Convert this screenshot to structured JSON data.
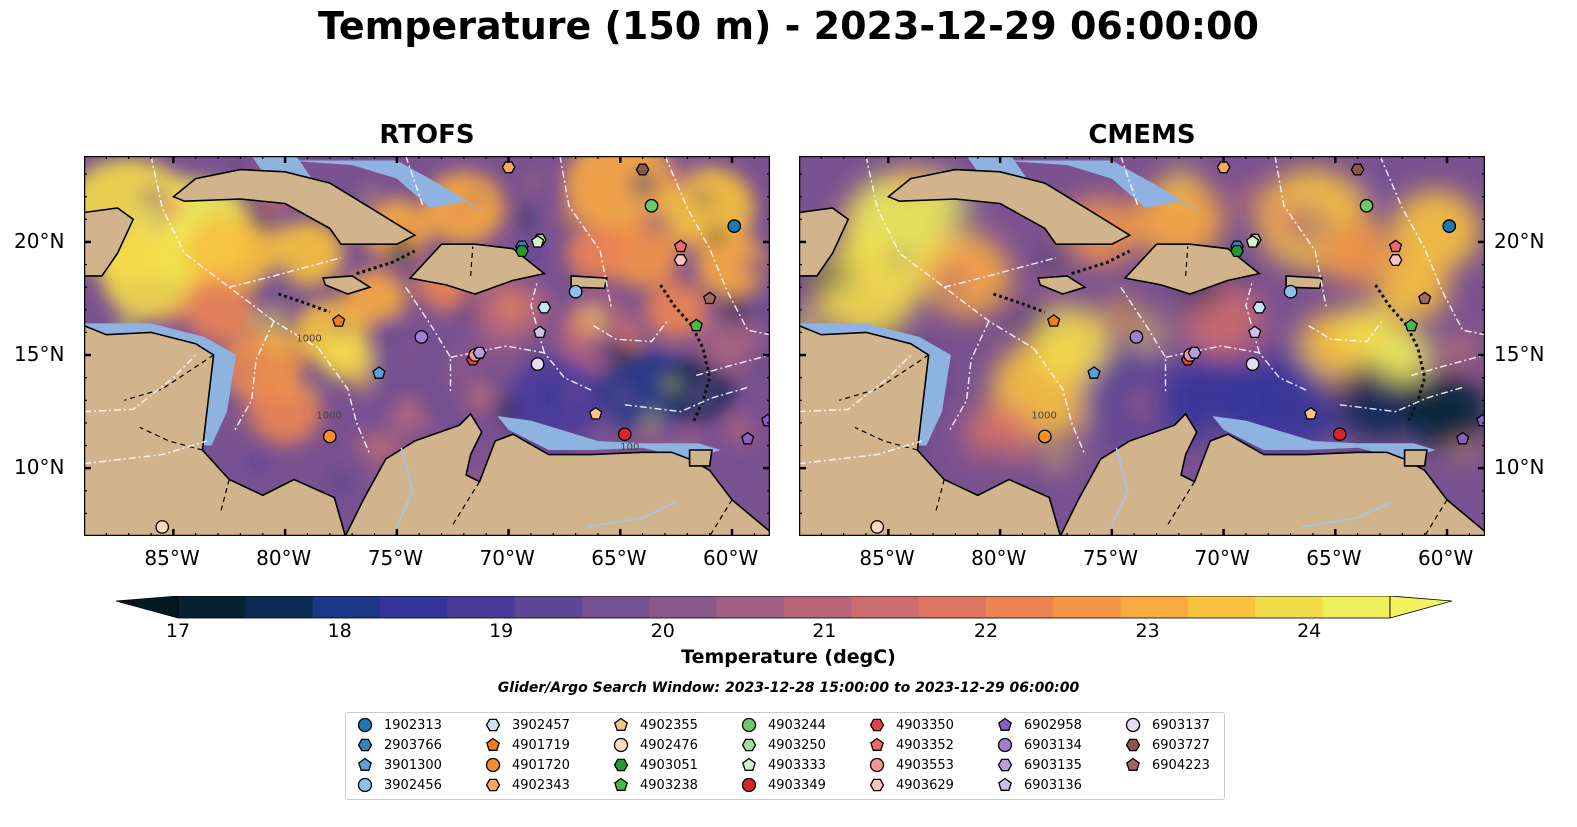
{
  "title": "Temperature (150 m) - 2023-12-29 06:00:00",
  "panels": [
    {
      "id": "rtofs",
      "title": "RTOFS"
    },
    {
      "id": "cmems",
      "title": "CMEMS"
    }
  ],
  "longitude_ticks": [
    "85°W",
    "80°W",
    "75°W",
    "70°W",
    "65°W",
    "60°W"
  ],
  "latitude_ticks": [
    "20°N",
    "15°N",
    "10°N"
  ],
  "contour_labels": [
    "100",
    "1000",
    "100",
    "1000"
  ],
  "colorbar": {
    "label": "Temperature (degC)",
    "min": 17,
    "max": 24.5,
    "ticks": [
      "17",
      "18",
      "19",
      "20",
      "21",
      "22",
      "23",
      "24"
    ],
    "colors": [
      "#062233",
      "#0d2a55",
      "#1d3685",
      "#33359a",
      "#4a3a9b",
      "#5f4596",
      "#744f91",
      "#8a588b",
      "#a15f84",
      "#b8657a",
      "#cc6c6f",
      "#de7662",
      "#ec8453",
      "#f49646",
      "#f8aa40",
      "#f8c23f",
      "#f3dc4a",
      "#f0ee5a"
    ],
    "over_color": "#f3f35f",
    "under_color": "#031822"
  },
  "search_window": "Glider/Argo Search Window: 2023-12-28 15:00:00 to 2023-12-29 06:00:00",
  "colors": {
    "land": "#d2b48c",
    "ocean_shelf": "#8fb3e0",
    "eez_line": "#ffffff",
    "border": "#000000"
  },
  "legend": [
    {
      "id": "1902313",
      "shape": "circle",
      "color": "#1f77b4"
    },
    {
      "id": "2903766",
      "shape": "hexagon",
      "color": "#3a7fc0"
    },
    {
      "id": "3901300",
      "shape": "pentagon",
      "color": "#5aa0d8"
    },
    {
      "id": "3902456",
      "shape": "circle",
      "color": "#8ec1ea"
    },
    {
      "id": "3902457",
      "shape": "hexagon",
      "color": "#c6e3f7"
    },
    {
      "id": "4901719",
      "shape": "pentagon",
      "color": "#f07f1a"
    },
    {
      "id": "4901720",
      "shape": "circle",
      "color": "#f48f2a"
    },
    {
      "id": "4902343",
      "shape": "hexagon",
      "color": "#f7a95a"
    },
    {
      "id": "4902355",
      "shape": "pentagon",
      "color": "#f9c48a"
    },
    {
      "id": "4902476",
      "shape": "circle",
      "color": "#fcdcbc"
    },
    {
      "id": "4903051",
      "shape": "hexagon",
      "color": "#229a2e"
    },
    {
      "id": "4903238",
      "shape": "pentagon",
      "color": "#4cb84a"
    },
    {
      "id": "4903244",
      "shape": "circle",
      "color": "#6fc96a"
    },
    {
      "id": "4903250",
      "shape": "hexagon",
      "color": "#a3df96"
    },
    {
      "id": "4903333",
      "shape": "pentagon",
      "color": "#d2f2c8"
    },
    {
      "id": "4903349",
      "shape": "circle",
      "color": "#d62728"
    },
    {
      "id": "4903350",
      "shape": "hexagon",
      "color": "#e04545"
    },
    {
      "id": "4903352",
      "shape": "pentagon",
      "color": "#eb6a6a"
    },
    {
      "id": "4903553",
      "shape": "circle",
      "color": "#f29494"
    },
    {
      "id": "4903629",
      "shape": "hexagon",
      "color": "#f9c3c3"
    },
    {
      "id": "6902958",
      "shape": "pentagon",
      "color": "#8a5fc2"
    },
    {
      "id": "6903134",
      "shape": "circle",
      "color": "#a27ed0"
    },
    {
      "id": "6903135",
      "shape": "hexagon",
      "color": "#b89ddd"
    },
    {
      "id": "6903136",
      "shape": "pentagon",
      "color": "#cfbdea"
    },
    {
      "id": "6903137",
      "shape": "circle",
      "color": "#e6dcf5"
    },
    {
      "id": "6903727",
      "shape": "hexagon",
      "color": "#8c564b"
    },
    {
      "id": "6904223",
      "shape": "pentagon",
      "color": "#a3685b"
    }
  ],
  "markers": [
    {
      "id": "1902313",
      "lon": -59.9,
      "lat": 20.7
    },
    {
      "id": "2903766",
      "lon": -69.4,
      "lat": 19.8
    },
    {
      "id": "3901300",
      "lon": -75.8,
      "lat": 14.2
    },
    {
      "id": "3902456",
      "lon": -67.0,
      "lat": 17.8
    },
    {
      "id": "3902457",
      "lon": -68.4,
      "lat": 17.1
    },
    {
      "id": "4901719",
      "lon": -77.6,
      "lat": 16.5
    },
    {
      "id": "4901720",
      "lon": -78.0,
      "lat": 11.4
    },
    {
      "id": "4902343",
      "lon": -70.0,
      "lat": 23.3
    },
    {
      "id": "4902355",
      "lon": -66.1,
      "lat": 12.4
    },
    {
      "id": "4902476",
      "lon": -85.5,
      "lat": 7.4
    },
    {
      "id": "4903051",
      "lon": -69.4,
      "lat": 19.6
    },
    {
      "id": "4903238",
      "lon": -61.6,
      "lat": 16.3
    },
    {
      "id": "4903244",
      "lon": -63.6,
      "lat": 21.6
    },
    {
      "id": "4903250",
      "lon": -68.6,
      "lat": 20.1
    },
    {
      "id": "4903333",
      "lon": -68.7,
      "lat": 20.0
    },
    {
      "id": "4903349",
      "lon": -64.8,
      "lat": 11.5
    },
    {
      "id": "4903350",
      "lon": -71.6,
      "lat": 14.8
    },
    {
      "id": "4903352",
      "lon": -62.3,
      "lat": 19.8
    },
    {
      "id": "4903553",
      "lon": -71.5,
      "lat": 15.0
    },
    {
      "id": "4903629",
      "lon": -62.3,
      "lat": 19.2
    },
    {
      "id": "6902958",
      "lon": -59.3,
      "lat": 11.3
    },
    {
      "id": "6903134",
      "lon": -73.9,
      "lat": 15.8
    },
    {
      "id": "6903135",
      "lon": -71.3,
      "lat": 15.1
    },
    {
      "id": "6903136",
      "lon": -68.6,
      "lat": 16.0
    },
    {
      "id": "6903137",
      "lon": -68.7,
      "lat": 14.6
    },
    {
      "id": "6903727",
      "lon": -64.0,
      "lat": 23.2
    },
    {
      "id": "6904223",
      "lon": -61.0,
      "lat": 17.5
    },
    {
      "id": "6902958",
      "lon": -58.4,
      "lat": 12.1
    }
  ]
}
